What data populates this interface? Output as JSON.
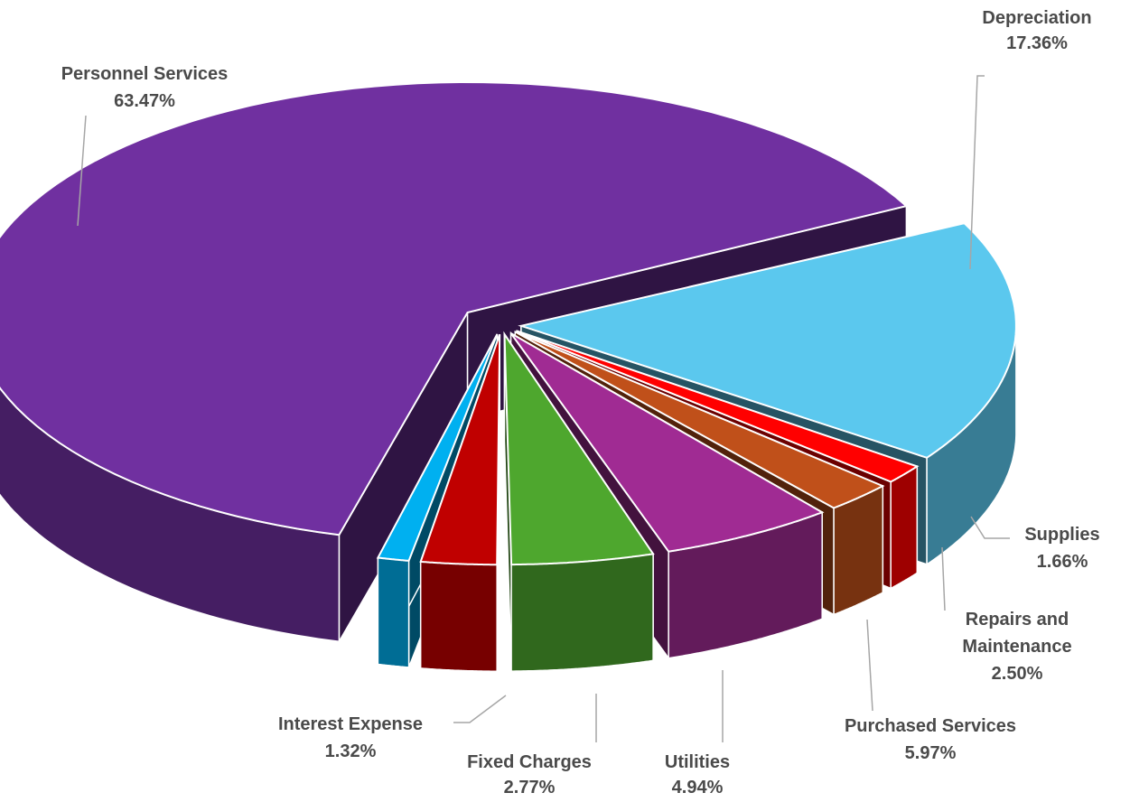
{
  "chart_data": {
    "type": "pie",
    "style": "3d-exploded",
    "title": "",
    "slices": [
      {
        "label": "Depreciation",
        "value": 17.36,
        "value_text": "17.36%",
        "color": "#5BC8EE"
      },
      {
        "label": "Supplies",
        "value": 1.66,
        "value_text": "1.66%",
        "color": "#FF0000"
      },
      {
        "label": "Repairs and Maintenance",
        "label_lines": [
          "Repairs and",
          "Maintenance"
        ],
        "value": 2.5,
        "value_text": "2.50%",
        "color": "#C0501A"
      },
      {
        "label": "Purchased Services",
        "value": 5.97,
        "value_text": "5.97%",
        "color": "#A02B93"
      },
      {
        "label": "Utilities",
        "value": 4.94,
        "value_text": "4.94%",
        "color": "#4EA72E"
      },
      {
        "label": "Fixed Charges",
        "value": 2.77,
        "value_text": "2.77%",
        "color": "#C00000"
      },
      {
        "label": "Interest Expense",
        "value": 1.32,
        "value_text": "1.32%",
        "color": "#00B0F0"
      },
      {
        "label": "Personnel Services",
        "value": 63.47,
        "value_text": "63.47%",
        "color": "#7030A0"
      }
    ]
  }
}
